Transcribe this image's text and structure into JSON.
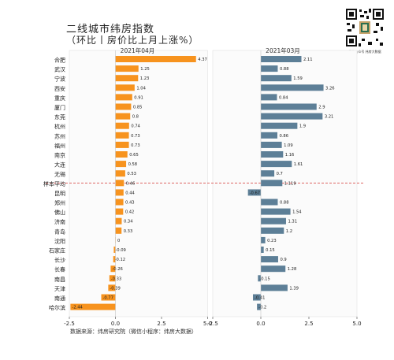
{
  "header": {
    "title": "二线城市纬房指数",
    "subtitle": "（环比丨房价比上月上涨%）"
  },
  "qr": {
    "caption": "微信公众号  纬房大数据"
  },
  "source_note": "数据来源：纬房研究院（微信小程序：纬房大数据）",
  "chart_data": {
    "type": "bar",
    "orientation": "horizontal",
    "categories": [
      "合肥",
      "武汉",
      "宁波",
      "西安",
      "重庆",
      "厦门",
      "东莞",
      "杭州",
      "苏州",
      "福州",
      "南京",
      "大连",
      "无锡",
      "样本平均",
      "昆明",
      "郑州",
      "佛山",
      "济南",
      "青岛",
      "沈阳",
      "石家庄",
      "长沙",
      "长春",
      "南昌",
      "天津",
      "南通",
      "哈尔滨"
    ],
    "series": [
      {
        "name": "2021年04月",
        "color": "#f7931e",
        "values": [
          4.37,
          1.25,
          1.23,
          1.04,
          0.91,
          0.85,
          0.8,
          0.74,
          0.73,
          0.73,
          0.65,
          0.58,
          0.53,
          0.46,
          0.44,
          0.43,
          0.42,
          0.34,
          0.33,
          0,
          -0.09,
          -0.12,
          -0.26,
          -0.33,
          -0.39,
          -0.77,
          -2.44
        ],
        "labels": [
          "4.37",
          "1.25",
          "1.23",
          "1.04",
          "0.91",
          "0.85",
          "0.8",
          "0.74",
          "0.73",
          "0.73",
          "0.65",
          "0.58",
          "0.53",
          "0.46",
          "0.44",
          "0.43",
          "0.42",
          "0.34",
          "0.33",
          "0",
          "-0.09",
          "-0.12",
          "-0.26",
          "-0.33",
          "-0.39",
          "-0.77",
          "-2.44"
        ],
        "xlim": [
          -2.5,
          5.0
        ],
        "ticks": [
          -2.5,
          0.0,
          2.5,
          5.0
        ],
        "tick_labels": [
          "-2.5",
          "0.0",
          "2.5",
          "5.0"
        ]
      },
      {
        "name": "2021年03月",
        "color": "#5d7f97",
        "values": [
          2.11,
          0.88,
          1.59,
          3.26,
          0.84,
          2.9,
          3.21,
          1.9,
          0.86,
          1.09,
          1.16,
          1.61,
          0.7,
          1.119,
          -0.67,
          0.88,
          1.54,
          1.31,
          1.2,
          0.23,
          0.15,
          0.9,
          1.28,
          -0.15,
          1.39,
          -0.41,
          -0.2
        ],
        "labels": [
          "2.11",
          "0.88",
          "1.59",
          "3.26",
          "0.84",
          "2.9",
          "3.21",
          "1.9",
          "0.86",
          "1.09",
          "1.16",
          "1.61",
          "0.7",
          "1.119",
          "-0.67",
          "0.88",
          "1.54",
          "1.31",
          "1.2",
          "0.23",
          "0.15",
          "0.9",
          "1.28",
          "-0.15",
          "1.39",
          "-0.41",
          "-0.2"
        ],
        "xlim": [
          -2.5,
          5.0
        ],
        "ticks": [
          -2.5,
          0.0,
          2.5,
          5.0
        ],
        "tick_labels": [
          "-2.5",
          "0.0",
          "2.5",
          "5.0"
        ]
      }
    ],
    "reference_line": {
      "category": "样本平均",
      "style": "dashed",
      "color": "#d9534f"
    },
    "grid": false
  }
}
